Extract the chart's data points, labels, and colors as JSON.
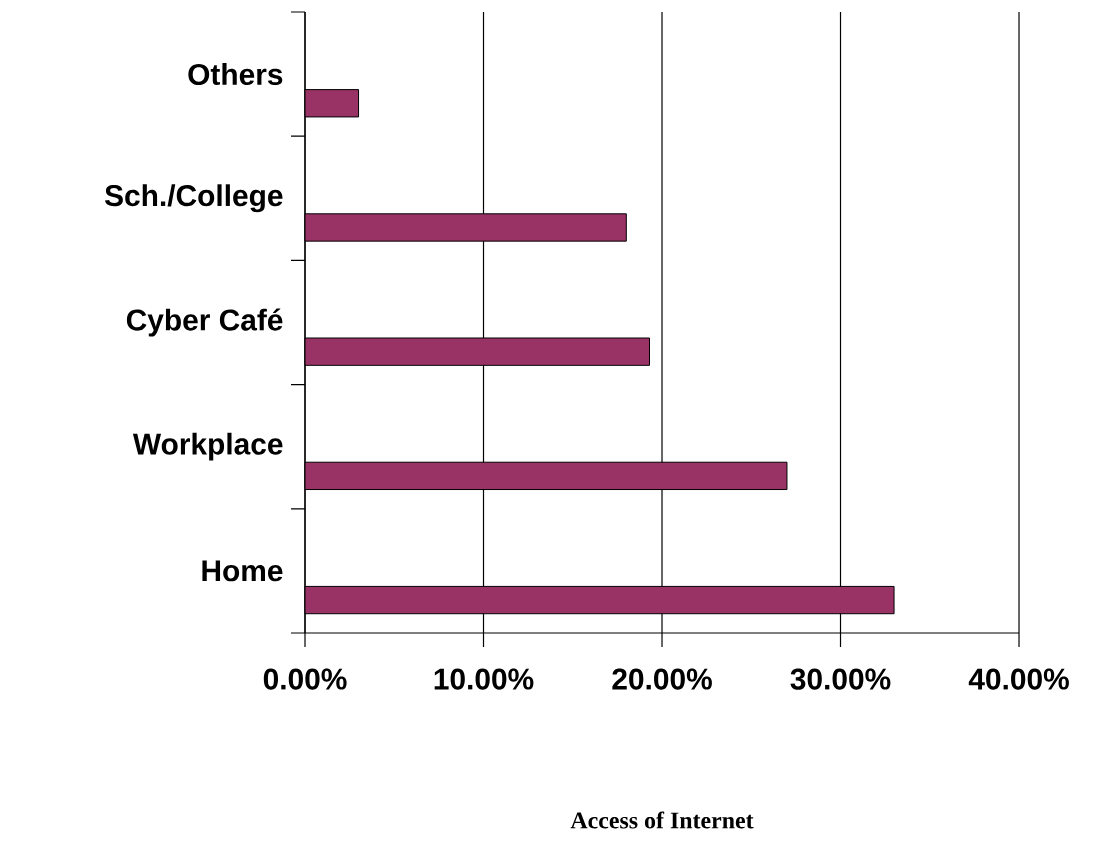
{
  "chart_data": {
    "type": "bar",
    "orientation": "horizontal",
    "annotations": [
      "Access of Internet"
    ],
    "categories": [
      "Others",
      "Sch./College",
      "Cyber Café",
      "Workplace",
      "Home"
    ],
    "values": [
      3.0,
      18.0,
      19.3,
      27.0,
      33.0
    ],
    "color": "#993366",
    "xlim": [
      0,
      40
    ],
    "xticks": [
      {
        "value": 0,
        "label": "0.00%"
      },
      {
        "value": 10,
        "label": "10.00%"
      },
      {
        "value": 20,
        "label": "20.00%"
      },
      {
        "value": 30,
        "label": "30.00%"
      },
      {
        "value": 40,
        "label": "40.00%"
      }
    ],
    "grid": "x",
    "legend": false
  }
}
